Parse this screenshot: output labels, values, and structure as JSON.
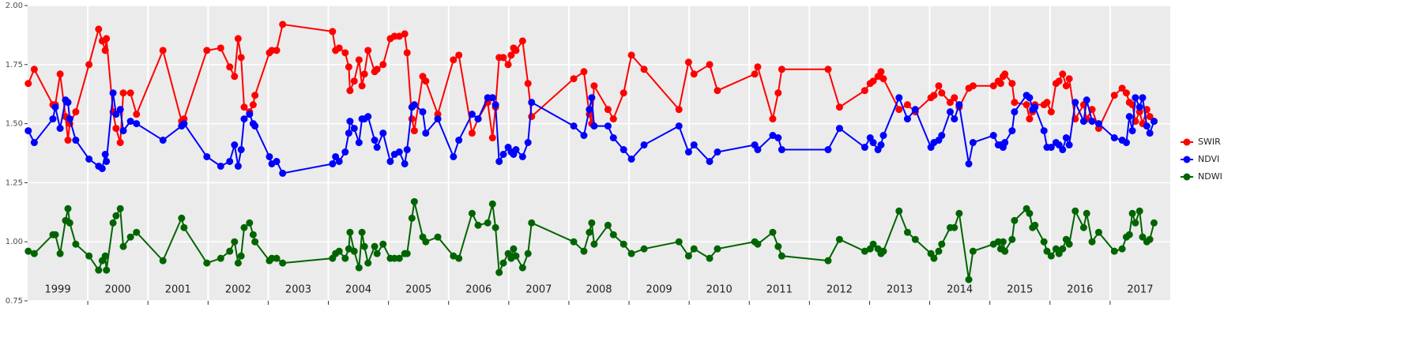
{
  "chart_data": {
    "type": "line",
    "markers": true,
    "legend_position": "right",
    "grid": true,
    "xlim": [
      1999,
      2018
    ],
    "xticks": [
      2000,
      2001,
      2002,
      2003,
      2004,
      2005,
      2006,
      2007,
      2008,
      2009,
      2010,
      2011,
      2012,
      2013,
      2014,
      2015,
      2016,
      2017
    ],
    "year_labels": [
      "1999",
      "2000",
      "2001",
      "2002",
      "2003",
      "2004",
      "2005",
      "2006",
      "2007",
      "2008",
      "2009",
      "2010",
      "2011",
      "2012",
      "2013",
      "2014",
      "2015",
      "2016",
      "2017"
    ],
    "ylim": [
      0.75,
      2.0
    ],
    "yticks": [
      {
        "value": 0.75,
        "label": "0.75"
      },
      {
        "value": 1.0,
        "label": "1.00"
      },
      {
        "value": 1.25,
        "label": "1.25"
      },
      {
        "value": 1.5,
        "label": "1.50"
      },
      {
        "value": 1.75,
        "label": "1.75"
      },
      {
        "value": 2.0,
        "label": "2.00"
      }
    ],
    "x": [
      1999.01,
      1999.11,
      1999.42,
      1999.46,
      1999.54,
      1999.63,
      1999.67,
      1999.7,
      1999.8,
      2000.02,
      2000.18,
      2000.24,
      2000.29,
      2000.31,
      2000.42,
      2000.47,
      2000.54,
      2000.59,
      2000.71,
      2000.81,
      2001.25,
      2001.56,
      2001.6,
      2001.98,
      2002.21,
      2002.36,
      2002.44,
      2002.5,
      2002.55,
      2002.6,
      2002.69,
      2002.75,
      2002.78,
      2003.02,
      2003.06,
      2003.14,
      2003.24,
      2004.07,
      2004.12,
      2004.18,
      2004.28,
      2004.34,
      2004.36,
      2004.43,
      2004.51,
      2004.56,
      2004.6,
      2004.66,
      2004.77,
      2004.81,
      2004.91,
      2005.03,
      2005.1,
      2005.18,
      2005.27,
      2005.31,
      2005.39,
      2005.43,
      2005.57,
      2005.62,
      2005.82,
      2006.08,
      2006.17,
      2006.39,
      2006.49,
      2006.65,
      2006.73,
      2006.78,
      2006.84,
      2006.91,
      2006.99,
      2007.04,
      2007.08,
      2007.12,
      2007.23,
      2007.32,
      2007.38,
      2008.08,
      2008.25,
      2008.34,
      2008.38,
      2008.42,
      2008.65,
      2008.74,
      2008.91,
      2009.04,
      2009.25,
      2009.83,
      2009.99,
      2010.08,
      2010.34,
      2010.47,
      2011.09,
      2011.14,
      2011.39,
      2011.48,
      2011.54,
      2012.31,
      2012.5,
      2012.92,
      2013.01,
      2013.06,
      2013.14,
      2013.19,
      2013.23,
      2013.49,
      2013.63,
      2013.76,
      2014.02,
      2014.07,
      2014.15,
      2014.2,
      2014.34,
      2014.41,
      2014.49,
      2014.65,
      2014.72,
      2015.06,
      2015.14,
      2015.18,
      2015.22,
      2015.25,
      2015.37,
      2015.41,
      2015.61,
      2015.66,
      2015.71,
      2015.75,
      2015.9,
      2015.95,
      2016.02,
      2016.1,
      2016.15,
      2016.21,
      2016.27,
      2016.32,
      2016.42,
      2016.56,
      2016.61,
      2016.7,
      2016.81,
      2017.07,
      2017.2,
      2017.27,
      2017.32,
      2017.37,
      2017.42,
      2017.49,
      2017.54,
      2017.61,
      2017.66,
      2017.73
    ],
    "series": [
      {
        "name": "SWIR",
        "color": "#ff0000",
        "values": [
          1.67,
          1.73,
          1.58,
          1.58,
          1.71,
          1.53,
          1.43,
          1.5,
          1.55,
          1.75,
          1.9,
          1.85,
          1.81,
          1.86,
          1.55,
          1.48,
          1.42,
          1.63,
          1.63,
          1.54,
          1.81,
          1.51,
          1.52,
          1.81,
          1.82,
          1.74,
          1.7,
          1.86,
          1.78,
          1.57,
          1.55,
          1.58,
          1.62,
          1.8,
          1.81,
          1.81,
          1.92,
          1.89,
          1.81,
          1.82,
          1.8,
          1.74,
          1.64,
          1.68,
          1.77,
          1.66,
          1.71,
          1.81,
          1.72,
          1.73,
          1.75,
          1.86,
          1.87,
          1.87,
          1.88,
          1.8,
          1.52,
          1.47,
          1.7,
          1.68,
          1.54,
          1.77,
          1.79,
          1.46,
          1.52,
          1.59,
          1.44,
          1.57,
          1.78,
          1.78,
          1.75,
          1.79,
          1.82,
          1.81,
          1.85,
          1.67,
          1.53,
          1.69,
          1.72,
          1.54,
          1.5,
          1.66,
          1.56,
          1.52,
          1.63,
          1.79,
          1.73,
          1.56,
          1.76,
          1.71,
          1.75,
          1.64,
          1.71,
          1.74,
          1.52,
          1.63,
          1.73,
          1.73,
          1.57,
          1.64,
          1.67,
          1.68,
          1.7,
          1.72,
          1.69,
          1.56,
          1.58,
          1.55,
          1.61,
          1.62,
          1.66,
          1.63,
          1.59,
          1.61,
          1.57,
          1.65,
          1.66,
          1.66,
          1.68,
          1.67,
          1.7,
          1.71,
          1.67,
          1.59,
          1.58,
          1.52,
          1.55,
          1.58,
          1.58,
          1.59,
          1.55,
          1.67,
          1.68,
          1.71,
          1.66,
          1.69,
          1.52,
          1.58,
          1.52,
          1.56,
          1.48,
          1.62,
          1.65,
          1.63,
          1.59,
          1.58,
          1.51,
          1.55,
          1.5,
          1.56,
          1.53,
          1.51
        ]
      },
      {
        "name": "NDVI",
        "color": "#0000ff",
        "values": [
          1.47,
          1.42,
          1.52,
          1.57,
          1.48,
          1.6,
          1.59,
          1.52,
          1.43,
          1.35,
          1.32,
          1.31,
          1.37,
          1.34,
          1.63,
          1.54,
          1.56,
          1.47,
          1.51,
          1.5,
          1.43,
          1.49,
          1.5,
          1.36,
          1.32,
          1.34,
          1.41,
          1.32,
          1.39,
          1.52,
          1.54,
          1.5,
          1.49,
          1.36,
          1.33,
          1.34,
          1.29,
          1.33,
          1.36,
          1.34,
          1.38,
          1.46,
          1.51,
          1.48,
          1.42,
          1.52,
          1.52,
          1.53,
          1.43,
          1.4,
          1.46,
          1.34,
          1.37,
          1.38,
          1.33,
          1.39,
          1.57,
          1.58,
          1.55,
          1.46,
          1.52,
          1.36,
          1.43,
          1.54,
          1.52,
          1.61,
          1.61,
          1.58,
          1.34,
          1.37,
          1.4,
          1.38,
          1.37,
          1.39,
          1.36,
          1.42,
          1.59,
          1.49,
          1.45,
          1.56,
          1.61,
          1.49,
          1.49,
          1.44,
          1.39,
          1.35,
          1.41,
          1.49,
          1.38,
          1.41,
          1.34,
          1.38,
          1.41,
          1.39,
          1.45,
          1.44,
          1.39,
          1.39,
          1.48,
          1.4,
          1.44,
          1.42,
          1.39,
          1.41,
          1.45,
          1.61,
          1.52,
          1.56,
          1.4,
          1.42,
          1.43,
          1.45,
          1.55,
          1.52,
          1.58,
          1.33,
          1.42,
          1.45,
          1.41,
          1.41,
          1.4,
          1.42,
          1.47,
          1.55,
          1.62,
          1.61,
          1.56,
          1.57,
          1.47,
          1.4,
          1.4,
          1.42,
          1.41,
          1.39,
          1.44,
          1.41,
          1.59,
          1.51,
          1.6,
          1.51,
          1.5,
          1.44,
          1.43,
          1.42,
          1.53,
          1.47,
          1.61,
          1.57,
          1.61,
          1.49,
          1.46,
          1.51
        ]
      },
      {
        "name": "NDWI",
        "color": "#006400",
        "values": [
          0.96,
          0.95,
          1.03,
          1.03,
          0.95,
          1.09,
          1.14,
          1.08,
          0.99,
          0.94,
          0.88,
          0.92,
          0.94,
          0.88,
          1.08,
          1.11,
          1.14,
          0.98,
          1.02,
          1.04,
          0.92,
          1.1,
          1.06,
          0.91,
          0.93,
          0.96,
          1.0,
          0.91,
          0.94,
          1.06,
          1.08,
          1.03,
          1.0,
          0.92,
          0.93,
          0.93,
          0.91,
          0.93,
          0.95,
          0.96,
          0.93,
          0.97,
          1.04,
          0.96,
          0.89,
          1.04,
          0.98,
          0.91,
          0.98,
          0.95,
          0.99,
          0.93,
          0.93,
          0.93,
          0.95,
          0.95,
          1.1,
          1.17,
          1.02,
          1.0,
          1.02,
          0.94,
          0.93,
          1.12,
          1.07,
          1.08,
          1.16,
          1.06,
          0.87,
          0.91,
          0.95,
          0.93,
          0.97,
          0.94,
          0.89,
          0.95,
          1.08,
          1.0,
          0.96,
          1.04,
          1.08,
          0.99,
          1.07,
          1.03,
          0.99,
          0.95,
          0.97,
          1.0,
          0.94,
          0.97,
          0.93,
          0.97,
          1.0,
          0.99,
          1.04,
          0.98,
          0.94,
          0.92,
          1.01,
          0.96,
          0.97,
          0.99,
          0.97,
          0.95,
          0.96,
          1.13,
          1.04,
          1.01,
          0.95,
          0.93,
          0.96,
          0.99,
          1.06,
          1.06,
          1.12,
          0.84,
          0.96,
          0.99,
          1.0,
          0.97,
          1.0,
          0.96,
          1.01,
          1.09,
          1.14,
          1.12,
          1.06,
          1.07,
          1.0,
          0.96,
          0.94,
          0.97,
          0.95,
          0.97,
          1.01,
          0.99,
          1.13,
          1.06,
          1.12,
          1.0,
          1.04,
          0.96,
          0.97,
          1.02,
          1.03,
          1.12,
          1.08,
          1.13,
          1.02,
          1.0,
          1.01,
          1.08
        ]
      }
    ]
  }
}
